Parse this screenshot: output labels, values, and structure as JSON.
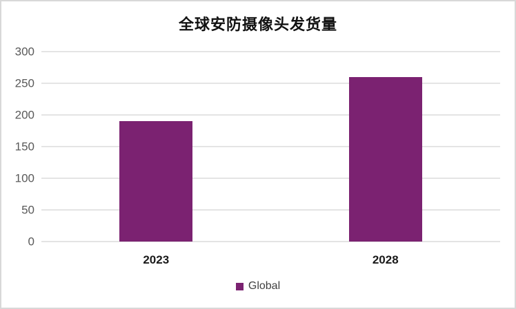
{
  "chart_data": {
    "type": "bar",
    "title": "全球安防摄像头发货量",
    "categories": [
      "2023",
      "2028"
    ],
    "series": [
      {
        "name": "Global",
        "values": [
          190,
          260
        ]
      }
    ],
    "xlabel": "",
    "ylabel": "",
    "ylim": [
      0,
      300
    ],
    "yticks": [
      0,
      50,
      100,
      150,
      200,
      250,
      300
    ],
    "grid": true,
    "legend_position": "bottom",
    "colors": {
      "bar": "#7b2271",
      "gridline": "#e4e4e4",
      "y_tick_label": "#595959",
      "category_label": "#1a1a1a",
      "title": "#111111"
    }
  }
}
